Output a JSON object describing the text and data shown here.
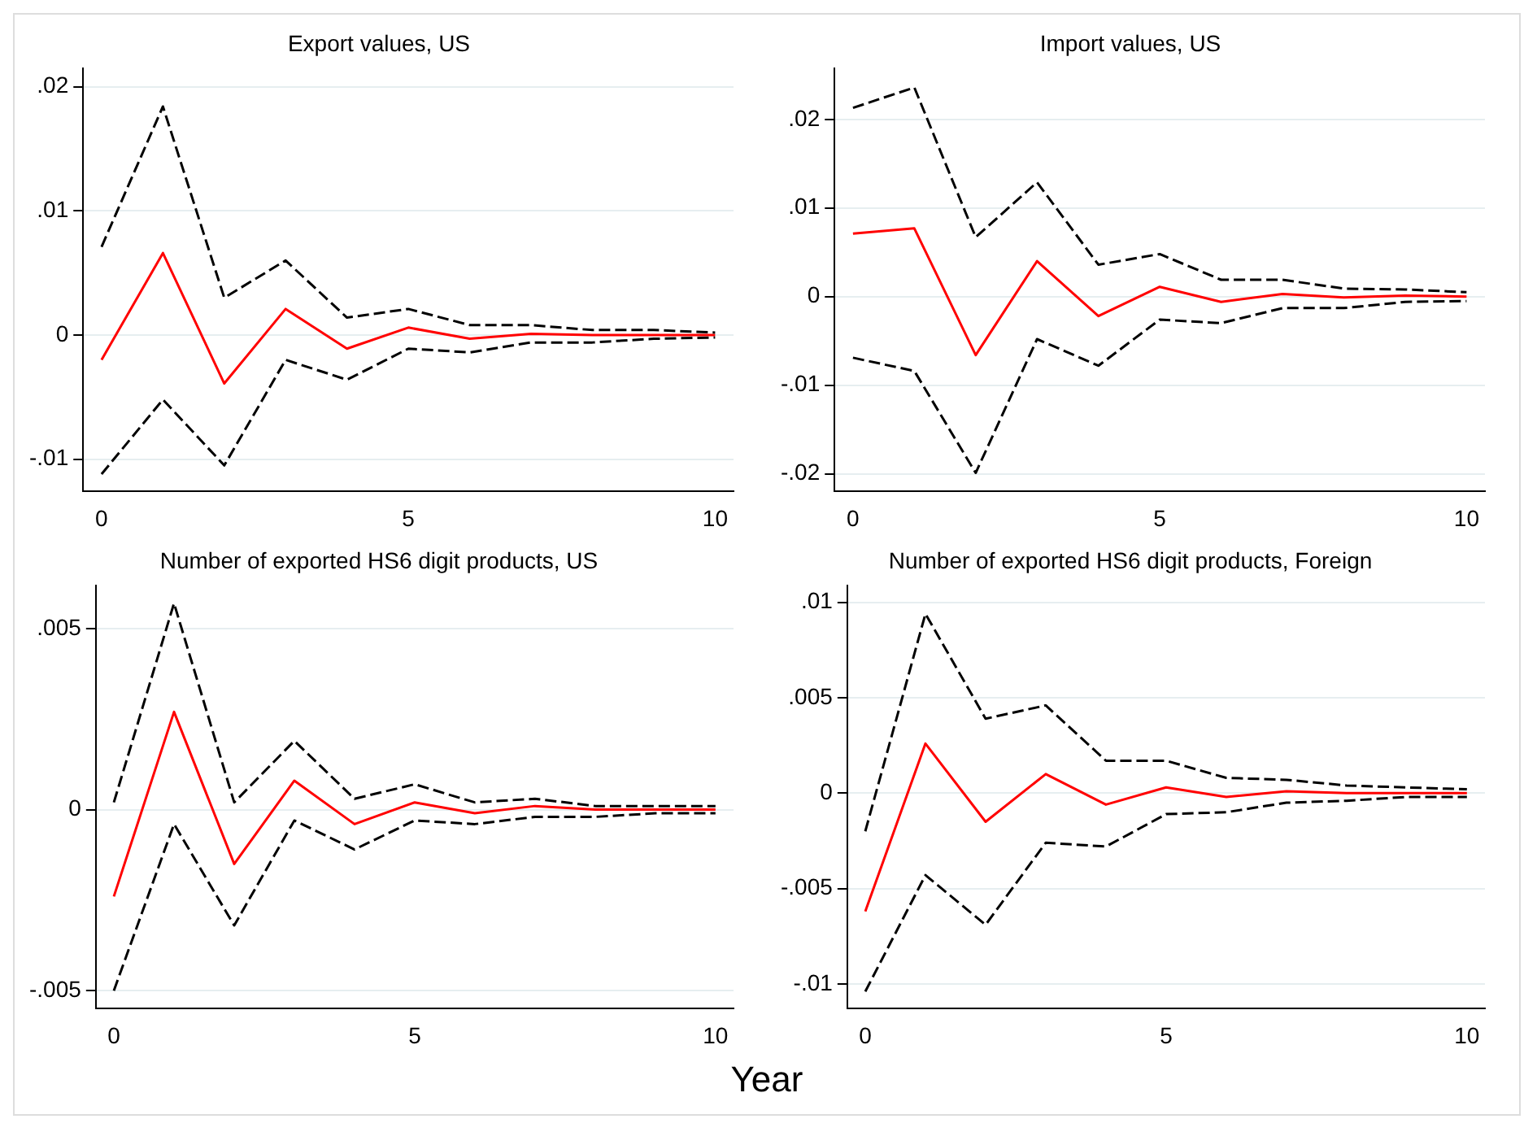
{
  "chart_data": [
    {
      "type": "line",
      "title": "Export values, US",
      "x": [
        0,
        1,
        2,
        3,
        4,
        5,
        6,
        7,
        8,
        9,
        10
      ],
      "xlim": [
        -0.3,
        10.3
      ],
      "xticks": [
        0,
        5,
        10
      ],
      "ylim": [
        -0.0126,
        0.0215
      ],
      "yticks": [
        {
          "value": -0.01,
          "label": "-.01"
        },
        {
          "value": 0,
          "label": "0"
        },
        {
          "value": 0.01,
          "label": ".01"
        },
        {
          "value": 0.02,
          "label": ".02"
        }
      ],
      "grid": "y",
      "legend": false,
      "marker": "none",
      "series": [
        {
          "color": "#000000",
          "line_style": "dashed",
          "values": [
            0.0071,
            0.0184,
            0.003,
            0.006,
            0.0014,
            0.0021,
            0.0008,
            0.0008,
            0.0004,
            0.0004,
            0.0002
          ]
        },
        {
          "color": "#000000",
          "line_style": "dashed",
          "values": [
            -0.0112,
            -0.0052,
            -0.0105,
            -0.002,
            -0.0036,
            -0.0011,
            -0.0014,
            -0.0006,
            -0.0006,
            -0.0003,
            -0.0002
          ]
        },
        {
          "color": "#ff0000",
          "line_style": "solid",
          "values": [
            -0.002,
            0.0066,
            -0.0039,
            0.0021,
            -0.0011,
            0.0006,
            -0.0003,
            0.0001,
            0,
            0,
            0
          ]
        }
      ]
    },
    {
      "type": "line",
      "title": "Import values, US",
      "x": [
        0,
        1,
        2,
        3,
        4,
        5,
        6,
        7,
        8,
        9,
        10
      ],
      "xlim": [
        -0.3,
        10.3
      ],
      "xticks": [
        0,
        5,
        10
      ],
      "ylim": [
        -0.022,
        0.0258
      ],
      "yticks": [
        {
          "value": -0.02,
          "label": "-.02"
        },
        {
          "value": -0.01,
          "label": "-.01"
        },
        {
          "value": 0,
          "label": "0"
        },
        {
          "value": 0.01,
          "label": ".01"
        },
        {
          "value": 0.02,
          "label": ".02"
        }
      ],
      "grid": "y",
      "legend": false,
      "marker": "none",
      "series": [
        {
          "color": "#000000",
          "line_style": "dashed",
          "values": [
            0.0213,
            0.0236,
            0.0067,
            0.0129,
            0.0036,
            0.0048,
            0.0019,
            0.0019,
            0.0009,
            0.0008,
            0.0005
          ]
        },
        {
          "color": "#000000",
          "line_style": "dashed",
          "values": [
            -0.0069,
            -0.0084,
            -0.0199,
            -0.0048,
            -0.0078,
            -0.0026,
            -0.003,
            -0.0013,
            -0.0013,
            -0.0006,
            -0.0005
          ]
        },
        {
          "color": "#ff0000",
          "line_style": "solid",
          "values": [
            0.0071,
            0.0077,
            -0.0066,
            0.004,
            -0.0022,
            0.0011,
            -0.0006,
            0.0003,
            -0.0001,
            0.0001,
            0
          ]
        }
      ]
    },
    {
      "type": "line",
      "title": "Number of exported HS6 digit products, US",
      "x": [
        0,
        1,
        2,
        3,
        4,
        5,
        6,
        7,
        8,
        9,
        10
      ],
      "xlim": [
        -0.3,
        10.3
      ],
      "xticks": [
        0,
        5,
        10
      ],
      "ylim": [
        -0.0055,
        0.0062
      ],
      "yticks": [
        {
          "value": -0.005,
          "label": "-.005"
        },
        {
          "value": 0,
          "label": "0"
        },
        {
          "value": 0.005,
          "label": ".005"
        }
      ],
      "grid": "y",
      "legend": false,
      "marker": "none",
      "series": [
        {
          "color": "#000000",
          "line_style": "dashed",
          "values": [
            0.0002,
            0.0057,
            0.0002,
            0.0019,
            0.0003,
            0.0007,
            0.0002,
            0.0003,
            0.0001,
            0.0001,
            0.0001
          ]
        },
        {
          "color": "#000000",
          "line_style": "dashed",
          "values": [
            -0.005,
            -0.0004,
            -0.0032,
            -0.0003,
            -0.0011,
            -0.0003,
            -0.0004,
            -0.0002,
            -0.0002,
            -0.0001,
            -0.0001
          ]
        },
        {
          "color": "#ff0000",
          "line_style": "solid",
          "values": [
            -0.0024,
            0.0027,
            -0.0015,
            0.0008,
            -0.0004,
            0.0002,
            -0.0001,
            0.0001,
            0,
            0,
            0
          ]
        }
      ]
    },
    {
      "type": "line",
      "title": "Number of exported HS6 digit products, Foreign",
      "xlabel": "Year",
      "x": [
        0,
        1,
        2,
        3,
        4,
        5,
        6,
        7,
        8,
        9,
        10
      ],
      "xlim": [
        -0.3,
        10.3
      ],
      "xticks": [
        0,
        5,
        10
      ],
      "ylim": [
        -0.0113,
        0.0109
      ],
      "yticks": [
        {
          "value": -0.01,
          "label": "-.01"
        },
        {
          "value": -0.005,
          "label": "-.005"
        },
        {
          "value": 0,
          "label": "0"
        },
        {
          "value": 0.005,
          "label": ".005"
        },
        {
          "value": 0.01,
          "label": ".01"
        }
      ],
      "grid": "y",
      "legend": false,
      "marker": "none",
      "series": [
        {
          "color": "#000000",
          "line_style": "dashed",
          "values": [
            -0.002,
            0.0094,
            0.0039,
            0.0046,
            0.0017,
            0.0017,
            0.0008,
            0.0007,
            0.0004,
            0.0003,
            0.0002
          ]
        },
        {
          "color": "#000000",
          "line_style": "dashed",
          "values": [
            -0.0104,
            -0.0043,
            -0.0069,
            -0.0026,
            -0.0028,
            -0.0011,
            -0.001,
            -0.0005,
            -0.0004,
            -0.0002,
            -0.0002
          ]
        },
        {
          "color": "#ff0000",
          "line_style": "solid",
          "values": [
            -0.0062,
            0.0026,
            -0.0015,
            0.001,
            -0.0006,
            0.0003,
            -0.0002,
            0.0001,
            0,
            0,
            0
          ]
        }
      ]
    }
  ]
}
